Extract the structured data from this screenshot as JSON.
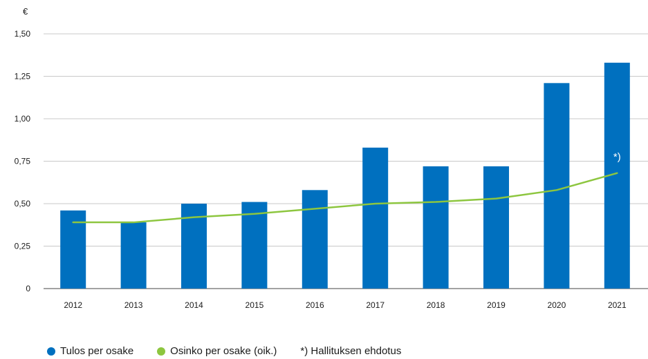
{
  "chart_data": {
    "type": "bar",
    "ylabel": "€",
    "categories": [
      "2012",
      "2013",
      "2014",
      "2015",
      "2016",
      "2017",
      "2018",
      "2019",
      "2020",
      "2021"
    ],
    "ylim": [
      0,
      1.5
    ],
    "yticks": [
      "0",
      "0,25",
      "0,50",
      "0,75",
      "1,00",
      "1,25",
      "1,50"
    ],
    "grid": true,
    "series": [
      {
        "name": "Tulos per osake",
        "type": "bar",
        "color": "#0070bf",
        "values": [
          0.46,
          0.39,
          0.5,
          0.51,
          0.58,
          0.83,
          0.72,
          0.72,
          1.21,
          1.33
        ]
      },
      {
        "name": "Osinko per osake (oik.)",
        "type": "line",
        "color": "#8dc63f",
        "values": [
          0.39,
          0.39,
          0.42,
          0.44,
          0.47,
          0.5,
          0.51,
          0.53,
          0.58,
          0.68
        ]
      }
    ],
    "annotations": [
      {
        "category": "2021",
        "text": "*)"
      }
    ],
    "legend": {
      "placement": "bottom-left",
      "note": "*) Hallituksen ehdotus"
    }
  }
}
